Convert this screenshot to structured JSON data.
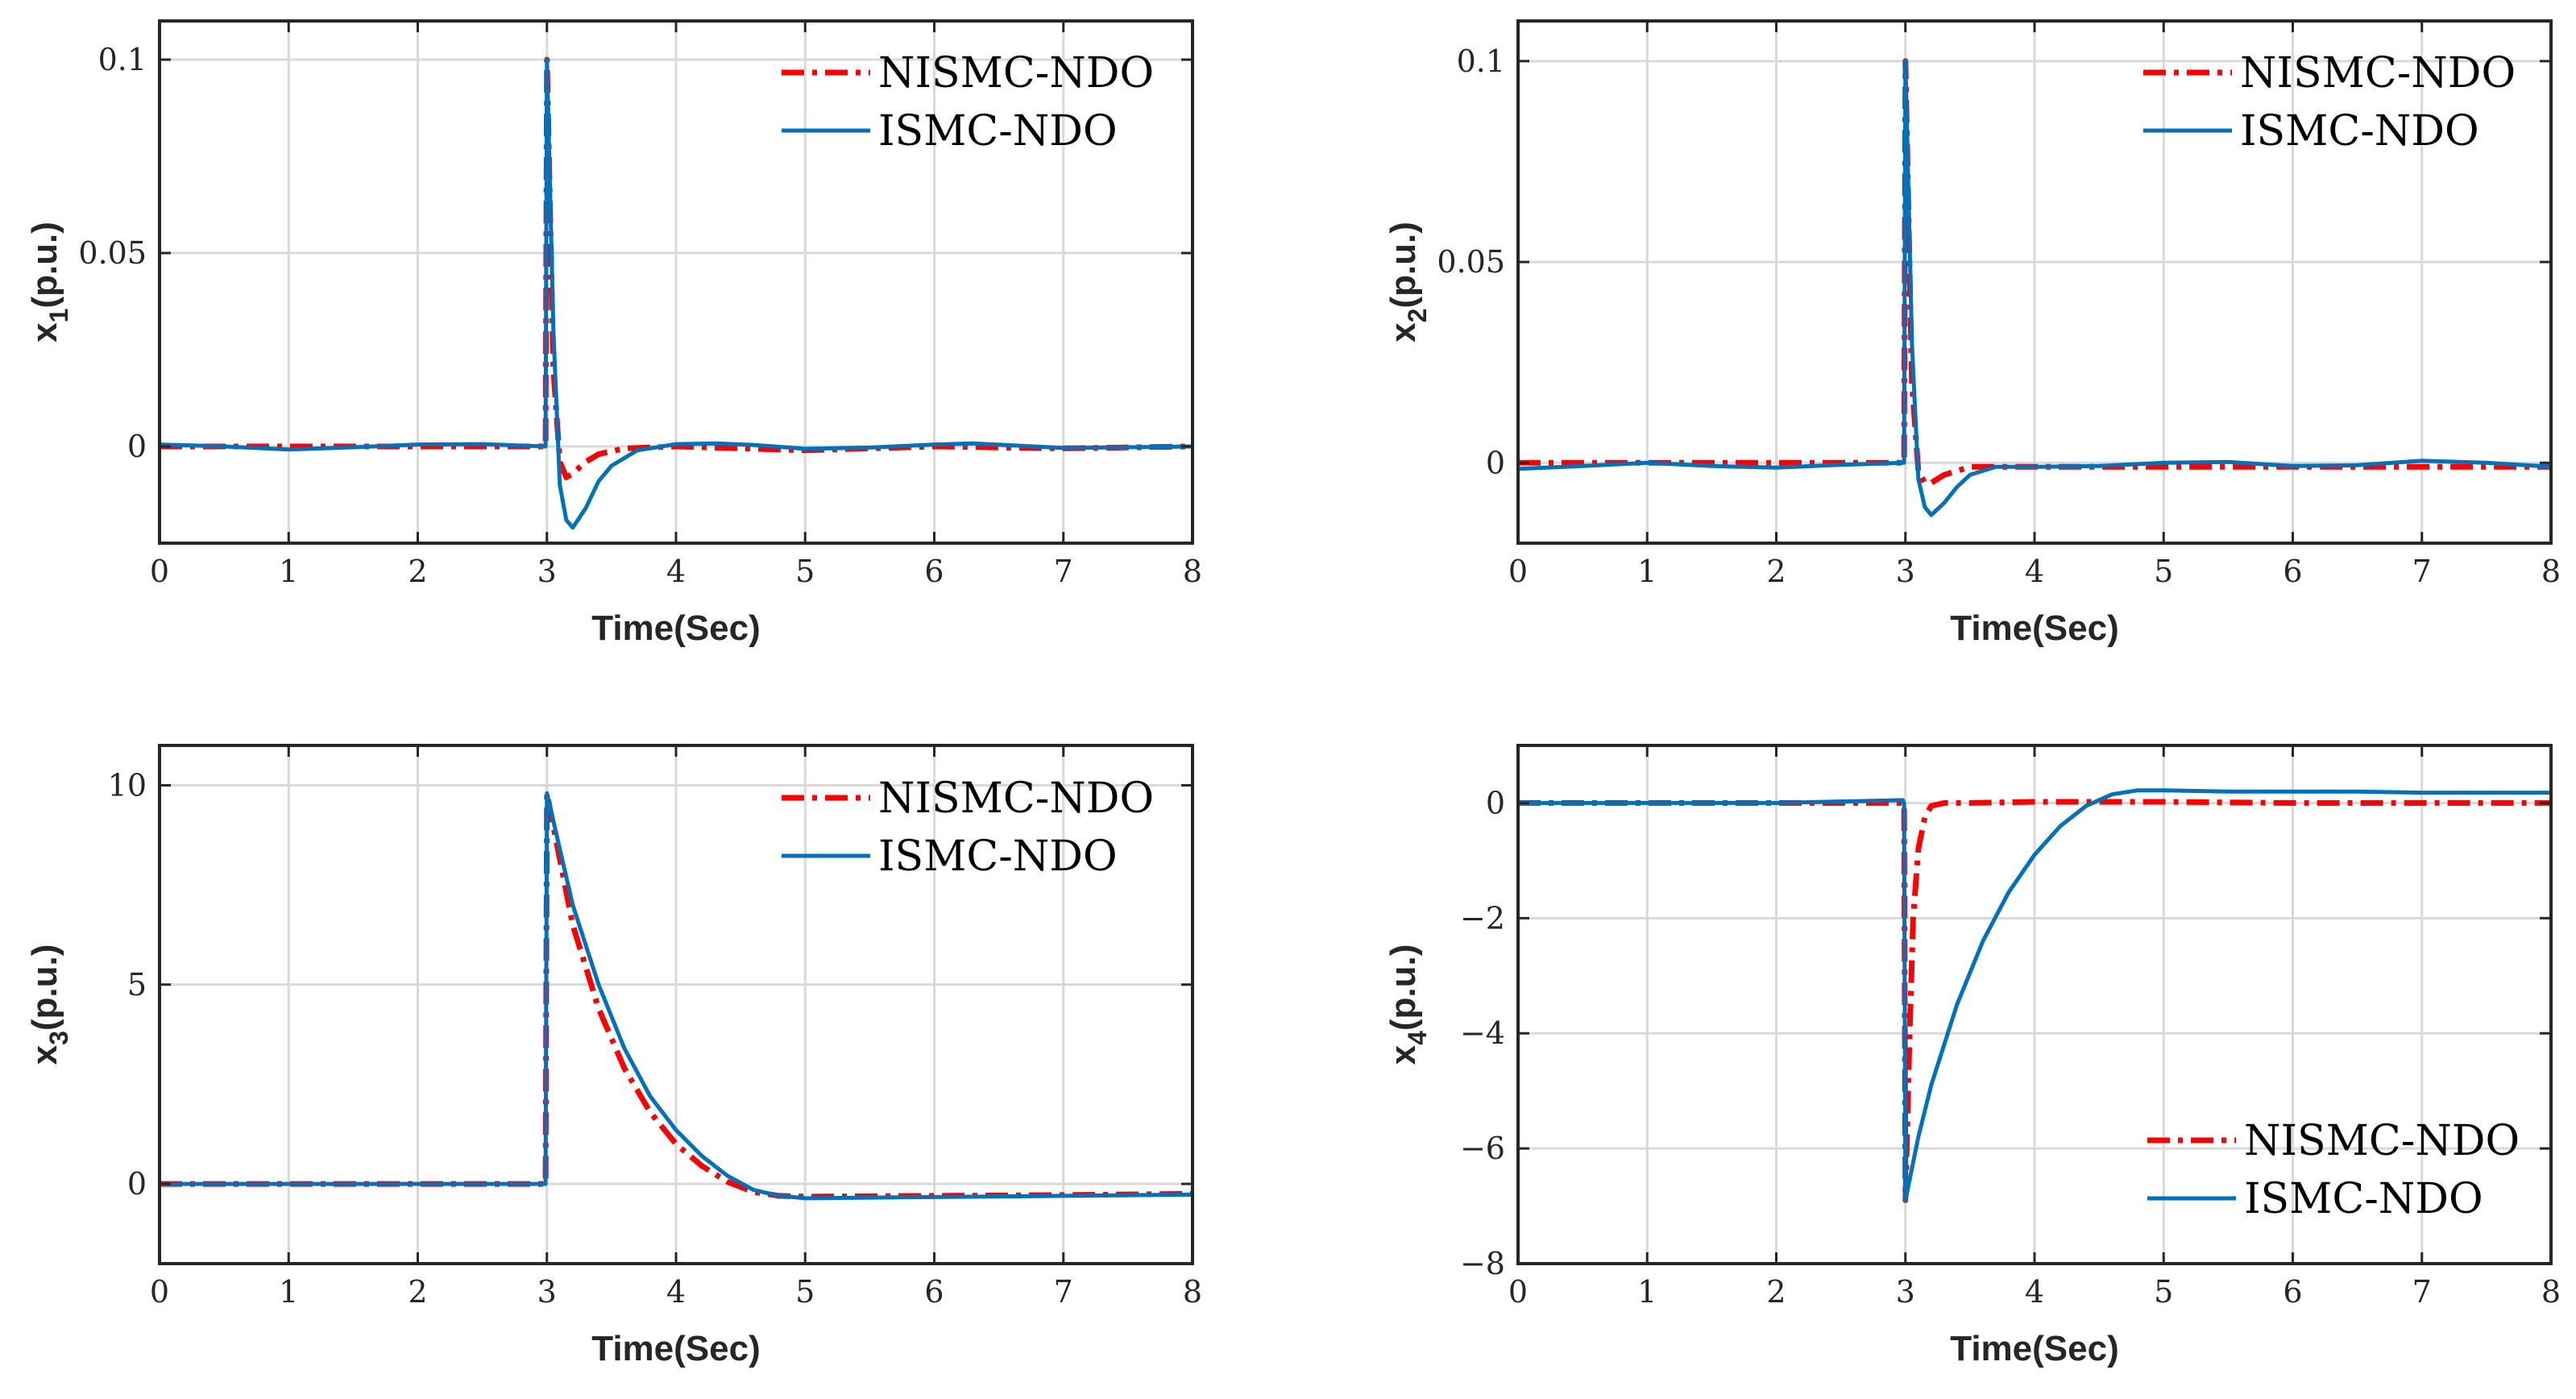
{
  "colors": {
    "nismc": "#ff0000",
    "ismc": "#0072bd",
    "grid": "#d9d9d9",
    "axis": "#262626"
  },
  "chart_data": [
    {
      "type": "line",
      "id": "x1",
      "ylabel_main": "x",
      "ylabel_sub": "1",
      "ylabel_rest": "(p.u.)",
      "xlabel": "Time(Sec)",
      "xlim": [
        0,
        8
      ],
      "ylim": [
        -0.025,
        0.11
      ],
      "xticks": [
        0,
        1,
        2,
        3,
        4,
        5,
        6,
        7,
        8
      ],
      "xtick_labels": [
        "0",
        "1",
        "2",
        "3",
        "4",
        "5",
        "6",
        "7",
        "8"
      ],
      "yticks": [
        0,
        0.05,
        0.1
      ],
      "ytick_labels": [
        "0",
        "0.05",
        "0.1"
      ],
      "legend": {
        "position": "top-right",
        "entries": [
          "NISMC-NDO",
          "ISMC-NDO"
        ]
      },
      "series": [
        {
          "name": "NISMC-NDO",
          "style": "dashdot",
          "x": [
            0,
            1,
            2,
            2.99,
            3.0,
            3.05,
            3.1,
            3.15,
            3.2,
            3.3,
            3.4,
            3.6,
            4,
            5,
            6,
            7,
            8
          ],
          "y": [
            0,
            0,
            0,
            0,
            0.1,
            0.02,
            -0.004,
            -0.008,
            -0.007,
            -0.004,
            -0.002,
            -0.0005,
            0,
            -0.001,
            0,
            -0.0005,
            0
          ]
        },
        {
          "name": "ISMC-NDO",
          "style": "solid",
          "x": [
            0,
            0.5,
            1,
            1.5,
            2,
            2.5,
            2.99,
            3.0,
            3.05,
            3.1,
            3.15,
            3.2,
            3.3,
            3.4,
            3.5,
            3.7,
            4.0,
            4.3,
            4.6,
            5,
            5.5,
            6,
            6.3,
            6.6,
            7,
            7.5,
            8
          ],
          "y": [
            0.0005,
            0,
            -0.0008,
            -0.0002,
            0.0005,
            0.0006,
            0,
            0.1,
            0.03,
            -0.01,
            -0.019,
            -0.021,
            -0.016,
            -0.009,
            -0.005,
            -0.001,
            0.0006,
            0.0008,
            0.0004,
            -0.0006,
            -0.0003,
            0.0005,
            0.0008,
            0.0003,
            -0.0004,
            -0.0002,
            0
          ]
        }
      ]
    },
    {
      "type": "line",
      "id": "x2",
      "ylabel_main": "x",
      "ylabel_sub": "2",
      "ylabel_rest": "(p.u.)",
      "xlabel": "Time(Sec)",
      "xlim": [
        0,
        8
      ],
      "ylim": [
        -0.02,
        0.11
      ],
      "xticks": [
        0,
        1,
        2,
        3,
        4,
        5,
        6,
        7,
        8
      ],
      "xtick_labels": [
        "0",
        "1",
        "2",
        "3",
        "4",
        "5",
        "6",
        "7",
        "8"
      ],
      "yticks": [
        0,
        0.05,
        0.1
      ],
      "ytick_labels": [
        "0",
        "0.05",
        "0.1"
      ],
      "legend": {
        "position": "top-right",
        "entries": [
          "NISMC-NDO",
          "ISMC-NDO"
        ]
      },
      "series": [
        {
          "name": "NISMC-NDO",
          "style": "dashdot",
          "x": [
            0,
            1,
            2,
            2.99,
            3.0,
            3.05,
            3.1,
            3.15,
            3.2,
            3.3,
            3.5,
            4,
            5,
            6,
            7,
            8
          ],
          "y": [
            0,
            0,
            0,
            0,
            0.1,
            0.02,
            -0.002,
            -0.005,
            -0.005,
            -0.003,
            -0.001,
            -0.001,
            -0.001,
            -0.001,
            -0.001,
            -0.001
          ]
        },
        {
          "name": "ISMC-NDO",
          "style": "solid",
          "x": [
            0,
            0.5,
            1,
            1.5,
            2,
            2.5,
            2.99,
            3.0,
            3.05,
            3.1,
            3.15,
            3.2,
            3.3,
            3.4,
            3.5,
            3.7,
            4.0,
            4.5,
            5,
            5.5,
            6,
            6.5,
            7,
            7.5,
            8
          ],
          "y": [
            -0.0015,
            -0.0008,
            0,
            -0.0008,
            -0.0012,
            -0.0005,
            0,
            0.1,
            0.03,
            -0.004,
            -0.011,
            -0.013,
            -0.01,
            -0.006,
            -0.003,
            -0.001,
            -0.001,
            -0.0008,
            0,
            0.0002,
            -0.0008,
            -0.0006,
            0.0005,
            0,
            -0.001
          ]
        }
      ]
    },
    {
      "type": "line",
      "id": "x3",
      "ylabel_main": "x",
      "ylabel_sub": "3",
      "ylabel_rest": "(p.u.)",
      "xlabel": "Time(Sec)",
      "xlim": [
        0,
        8
      ],
      "ylim": [
        -2,
        11
      ],
      "xticks": [
        0,
        1,
        2,
        3,
        4,
        5,
        6,
        7,
        8
      ],
      "xtick_labels": [
        "0",
        "1",
        "2",
        "3",
        "4",
        "5",
        "6",
        "7",
        "8"
      ],
      "yticks": [
        0,
        5,
        10
      ],
      "ytick_labels": [
        "0",
        "5",
        "10"
      ],
      "legend": {
        "position": "top-right",
        "entries": [
          "NISMC-NDO",
          "ISMC-NDO"
        ]
      },
      "series": [
        {
          "name": "NISMC-NDO",
          "style": "dashdot",
          "x": [
            0,
            1,
            2,
            2.99,
            3.0,
            3.2,
            3.4,
            3.6,
            3.8,
            4.0,
            4.2,
            4.4,
            4.6,
            4.8,
            5,
            6,
            7,
            8
          ],
          "y": [
            0,
            0,
            0,
            0,
            9.8,
            6.5,
            4.4,
            2.9,
            1.8,
            1.0,
            0.45,
            0.05,
            -0.2,
            -0.3,
            -0.32,
            -0.3,
            -0.28,
            -0.25
          ]
        },
        {
          "name": "ISMC-NDO",
          "style": "solid",
          "x": [
            0,
            1,
            2,
            2.99,
            3.0,
            3.2,
            3.4,
            3.6,
            3.8,
            4.0,
            4.2,
            4.4,
            4.6,
            4.8,
            5,
            6,
            7,
            8
          ],
          "y": [
            0,
            0,
            0,
            0,
            9.8,
            7.0,
            5.0,
            3.4,
            2.2,
            1.35,
            0.7,
            0.2,
            -0.15,
            -0.3,
            -0.36,
            -0.33,
            -0.3,
            -0.27
          ]
        }
      ]
    },
    {
      "type": "line",
      "id": "x4",
      "ylabel_main": "x",
      "ylabel_sub": "4",
      "ylabel_rest": "(p.u.)",
      "xlabel": "Time(Sec)",
      "xlim": [
        0,
        8
      ],
      "ylim": [
        -8,
        1
      ],
      "xticks": [
        0,
        1,
        2,
        3,
        4,
        5,
        6,
        7,
        8
      ],
      "xtick_labels": [
        "0",
        "1",
        "2",
        "3",
        "4",
        "5",
        "6",
        "7",
        "8"
      ],
      "yticks": [
        -8,
        -6,
        -4,
        -2,
        0
      ],
      "ytick_labels": [
        "−8",
        "−6",
        "−4",
        "−2",
        "0"
      ],
      "legend": {
        "position": "bottom-right",
        "entries": [
          "NISMC-NDO",
          "ISMC-NDO"
        ]
      },
      "series": [
        {
          "name": "NISMC-NDO",
          "style": "dashdot",
          "x": [
            0,
            1,
            2,
            2.99,
            3.0,
            3.03,
            3.06,
            3.1,
            3.15,
            3.2,
            3.3,
            3.5,
            4,
            5,
            6,
            7,
            8
          ],
          "y": [
            0,
            0,
            0,
            0,
            -6.9,
            -4.2,
            -2.0,
            -0.8,
            -0.25,
            -0.05,
            0,
            0,
            0.02,
            0.02,
            0,
            0,
            0
          ]
        },
        {
          "name": "ISMC-NDO",
          "style": "solid",
          "x": [
            0,
            1,
            2,
            2.98,
            2.99,
            3.0,
            3.1,
            3.2,
            3.4,
            3.6,
            3.8,
            4.0,
            4.2,
            4.4,
            4.6,
            4.8,
            5,
            5.5,
            6,
            6.5,
            7,
            7.5,
            8
          ],
          "y": [
            0,
            0,
            0,
            0.05,
            0,
            -6.9,
            -5.8,
            -4.9,
            -3.5,
            -2.4,
            -1.55,
            -0.9,
            -0.4,
            -0.05,
            0.15,
            0.22,
            0.22,
            0.2,
            0.2,
            0.2,
            0.18,
            0.18,
            0.18
          ]
        }
      ]
    }
  ]
}
